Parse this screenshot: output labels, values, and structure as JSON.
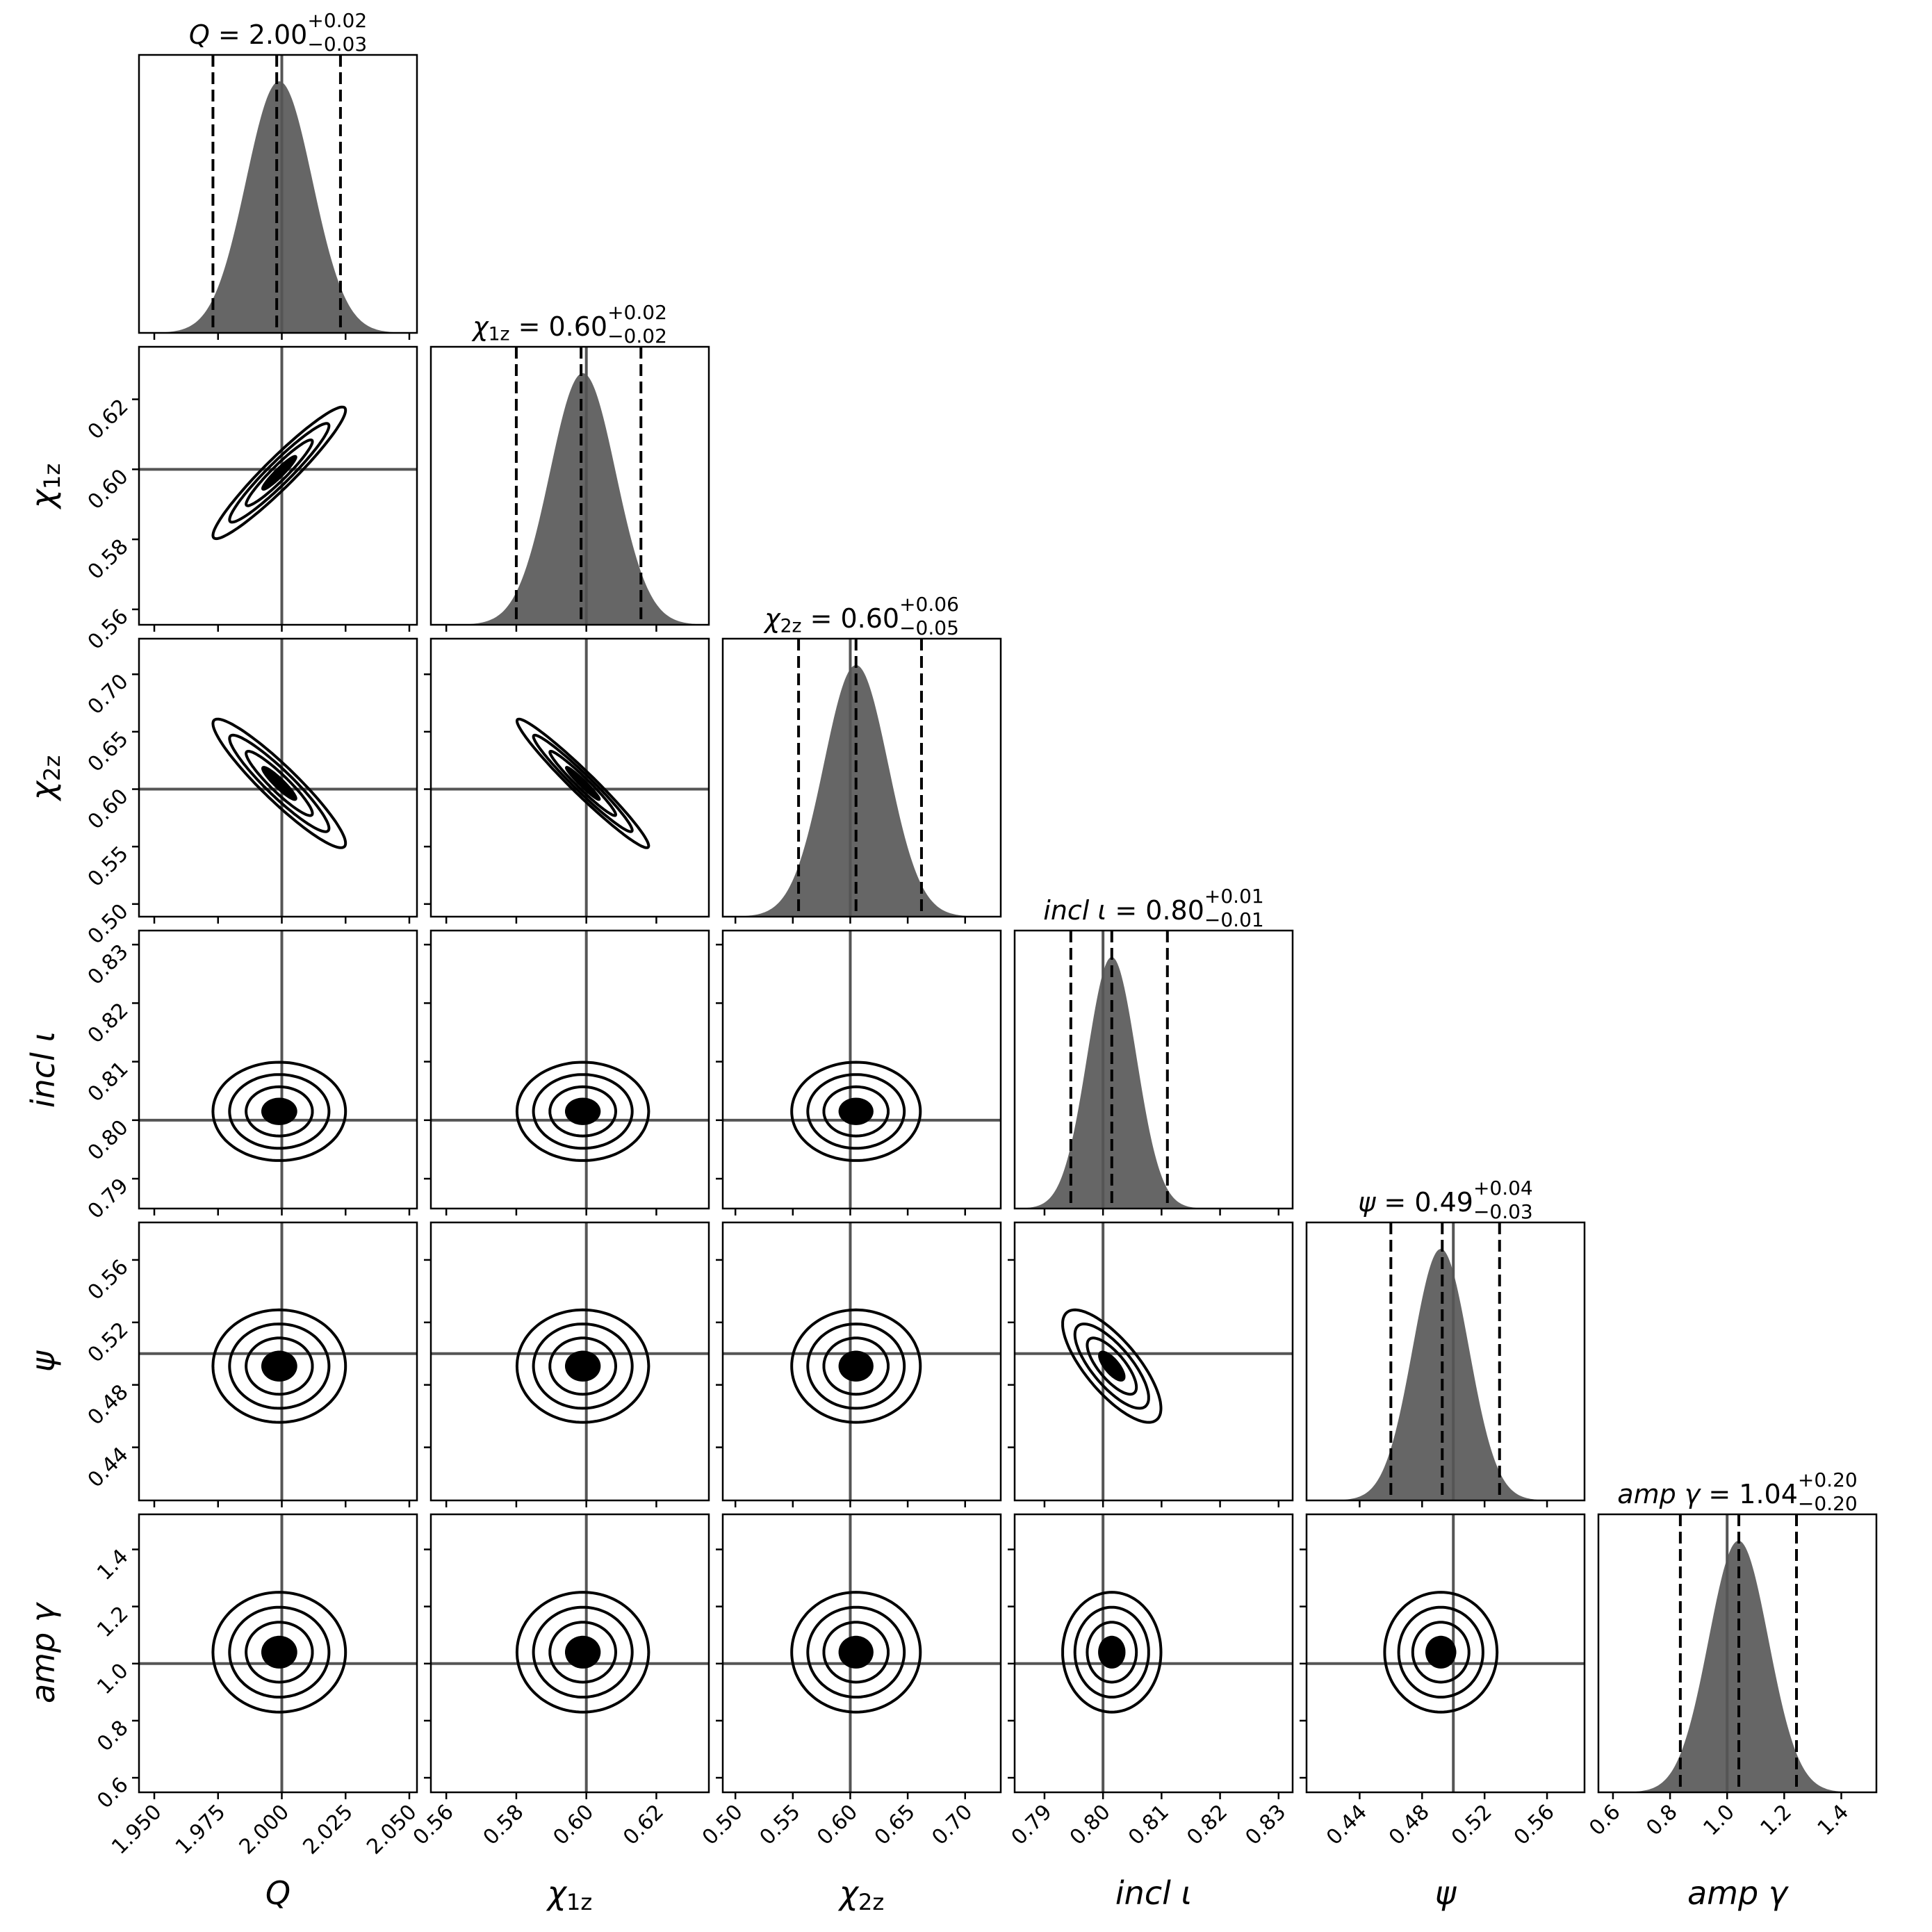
{
  "chart_data": {
    "type": "corner",
    "parameters": [
      {
        "key": "Q",
        "label": {
          "main": "Q",
          "sub": ""
        },
        "range": [
          1.944,
          2.053
        ],
        "ticks": [
          1.95,
          1.975,
          2.0,
          2.025,
          2.05
        ],
        "tick_labels": [
          "1.950",
          "1.975",
          "2.000",
          "2.025",
          "2.050"
        ],
        "truth": 2.0,
        "mean": 1.999,
        "sigma": 0.013,
        "quantiles": [
          1.973,
          1.998,
          2.023
        ],
        "title": {
          "value": "2.00",
          "plus": "+0.02",
          "minus": "−0.03"
        }
      },
      {
        "key": "chi1z",
        "label": {
          "main": "χ",
          "sub": "1z"
        },
        "range": [
          0.5556,
          0.635
        ],
        "ticks": [
          0.56,
          0.58,
          0.6,
          0.62
        ],
        "tick_labels": [
          "0.56",
          "0.58",
          "0.60",
          "0.62"
        ],
        "truth": 0.6,
        "mean": 0.599,
        "sigma": 0.0094,
        "quantiles": [
          0.58,
          0.5985,
          0.6156
        ],
        "title": {
          "value": "0.60",
          "plus": "+0.02",
          "minus": "−0.02"
        }
      },
      {
        "key": "chi2z",
        "label": {
          "main": "χ",
          "sub": "2z"
        },
        "range": [
          0.489,
          0.731
        ],
        "ticks": [
          0.5,
          0.55,
          0.6,
          0.65,
          0.7
        ],
        "tick_labels": [
          "0.50",
          "0.55",
          "0.60",
          "0.65",
          "0.70"
        ],
        "truth": 0.6,
        "mean": 0.605,
        "sigma": 0.028,
        "quantiles": [
          0.555,
          0.605,
          0.662
        ],
        "title": {
          "value": "0.60",
          "plus": "+0.06",
          "minus": "−0.05"
        }
      },
      {
        "key": "incl",
        "label": {
          "main": "incl ι",
          "sub": ""
        },
        "range": [
          0.7849,
          0.8324
        ],
        "ticks": [
          0.79,
          0.8,
          0.81,
          0.82,
          0.83
        ],
        "tick_labels": [
          "0.79",
          "0.80",
          "0.81",
          "0.82",
          "0.83"
        ],
        "truth": 0.8,
        "mean": 0.8015,
        "sigma": 0.0042,
        "quantiles": [
          0.7945,
          0.8015,
          0.811
        ],
        "title": {
          "value": "0.80",
          "plus": "+0.01",
          "minus": "−0.01"
        }
      },
      {
        "key": "psi",
        "label": {
          "main": "ψ",
          "sub": ""
        },
        "range": [
          0.406,
          0.584
        ],
        "ticks": [
          0.44,
          0.48,
          0.52,
          0.56
        ],
        "tick_labels": [
          "0.44",
          "0.48",
          "0.52",
          "0.56"
        ],
        "truth": 0.5,
        "mean": 0.492,
        "sigma": 0.018,
        "quantiles": [
          0.46,
          0.4929,
          0.5296
        ],
        "title": {
          "value": "0.49",
          "plus": "+0.04",
          "minus": "−0.03"
        }
      },
      {
        "key": "amp",
        "label": {
          "main": "amp γ",
          "sub": ""
        },
        "range": [
          0.549,
          1.523
        ],
        "ticks": [
          0.6,
          0.8,
          1.0,
          1.2,
          1.4
        ],
        "tick_labels": [
          "0.6",
          "0.8",
          "1.0",
          "1.2",
          "1.4"
        ],
        "truth": 1.0,
        "mean": 1.04,
        "sigma": 0.105,
        "quantiles": [
          0.836,
          1.041,
          1.243
        ],
        "title": {
          "value": "1.04",
          "plus": "+0.20",
          "minus": "−0.20"
        }
      }
    ],
    "correlations": [
      {
        "params": [
          "Q",
          "chi1z"
        ],
        "rho": 0.95
      },
      {
        "params": [
          "Q",
          "chi2z"
        ],
        "rho": -0.93
      },
      {
        "params": [
          "chi1z",
          "chi2z"
        ],
        "rho": -0.97
      },
      {
        "params": [
          "incl",
          "psi"
        ],
        "rho": -0.75
      }
    ],
    "contour_levels_sigma": [
      0.5,
      1.0,
      1.5,
      2.0
    ],
    "colors": {
      "histogram": "#666666",
      "truth": "#555555",
      "contour": "#000000",
      "quantile": "#000000"
    }
  }
}
